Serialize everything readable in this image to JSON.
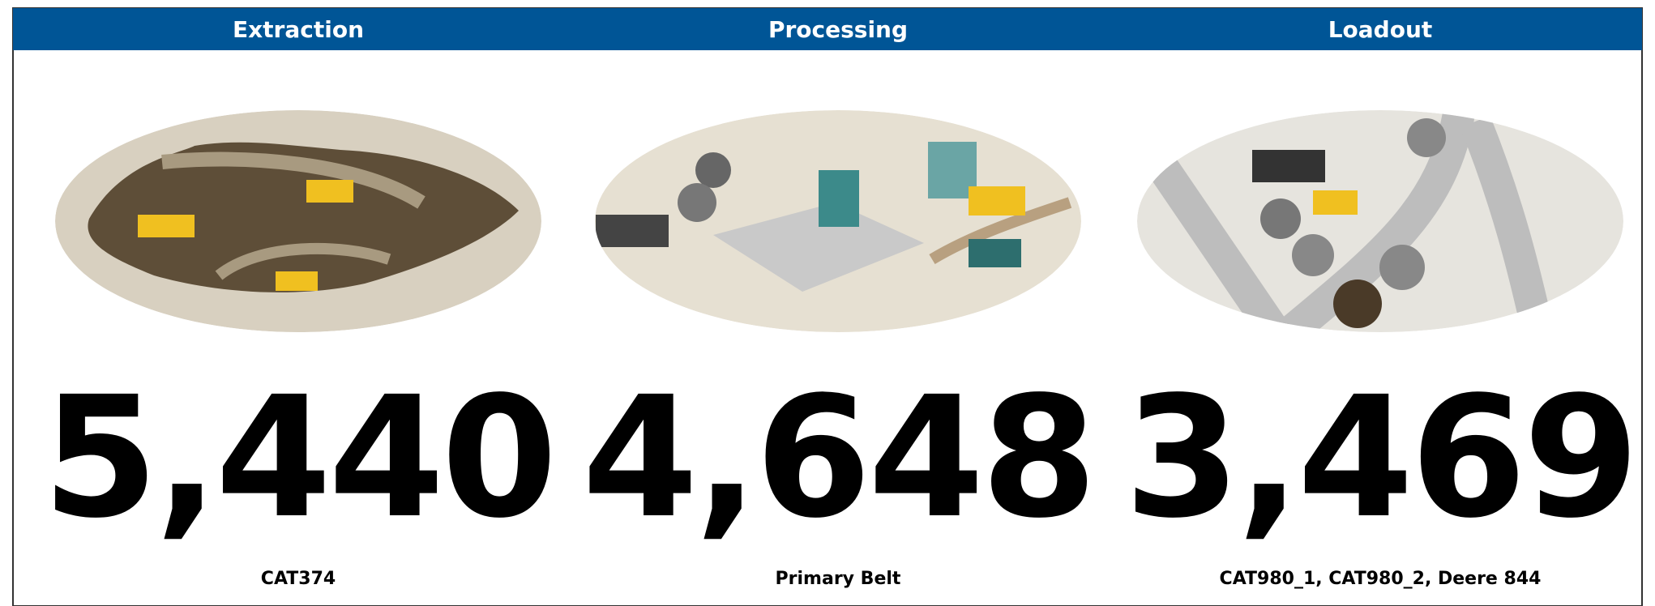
{
  "panels": [
    {
      "title": "Extraction",
      "value": "5,440",
      "equipment": "CAT374"
    },
    {
      "title": "Processing",
      "value": "4,648",
      "equipment": "Primary Belt"
    },
    {
      "title": "Loadout",
      "value": "3,469",
      "equipment": "CAT980_1, CAT980_2, Deere 844"
    }
  ]
}
